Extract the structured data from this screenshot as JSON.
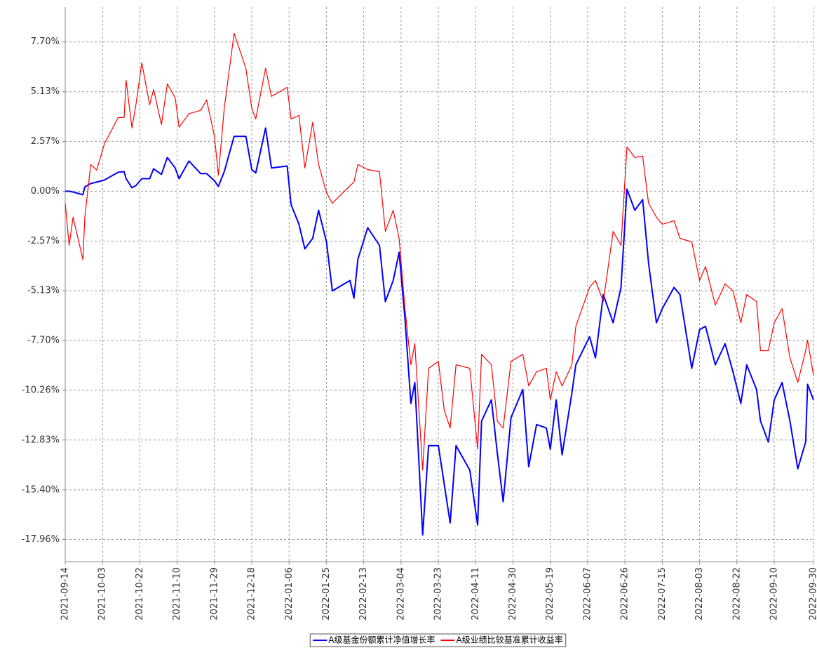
{
  "chart_data": {
    "type": "line",
    "x": [
      "2021-09-14",
      "2021-09-16",
      "2021-09-18",
      "2021-09-23",
      "2021-09-24",
      "2021-09-27",
      "2021-09-30",
      "2021-10-04",
      "2021-10-11",
      "2021-10-14",
      "2021-10-15",
      "2021-10-18",
      "2021-10-20",
      "2021-10-23",
      "2021-10-27",
      "2021-10-29",
      "2021-11-02",
      "2021-11-05",
      "2021-11-09",
      "2021-11-11",
      "2021-11-16",
      "2021-11-22",
      "2021-11-25",
      "2021-11-29",
      "2021-12-01",
      "2021-12-04",
      "2021-12-09",
      "2021-12-15",
      "2021-12-18",
      "2021-12-20",
      "2021-12-25",
      "2021-12-28",
      "2022-01-05",
      "2022-01-07",
      "2022-01-11",
      "2022-01-14",
      "2022-01-18",
      "2022-01-21",
      "2022-01-25",
      "2022-01-28",
      "2022-02-06",
      "2022-02-08",
      "2022-02-10",
      "2022-02-15",
      "2022-02-21",
      "2022-02-24",
      "2022-02-28",
      "2022-03-03",
      "2022-03-06",
      "2022-03-09",
      "2022-03-11",
      "2022-03-15",
      "2022-03-18",
      "2022-03-23",
      "2022-03-26",
      "2022-03-29",
      "2022-04-01",
      "2022-04-08",
      "2022-04-12",
      "2022-04-14",
      "2022-04-19",
      "2022-04-22",
      "2022-04-25",
      "2022-04-29",
      "2022-05-05",
      "2022-05-08",
      "2022-05-12",
      "2022-05-17",
      "2022-05-19",
      "2022-05-22",
      "2022-05-25",
      "2022-05-30",
      "2022-06-01",
      "2022-06-08",
      "2022-06-11",
      "2022-06-15",
      "2022-06-20",
      "2022-06-24",
      "2022-06-27",
      "2022-07-01",
      "2022-07-05",
      "2022-07-08",
      "2022-07-12",
      "2022-07-15",
      "2022-07-21",
      "2022-07-24",
      "2022-07-30",
      "2022-08-03",
      "2022-08-06",
      "2022-08-11",
      "2022-08-16",
      "2022-08-20",
      "2022-08-24",
      "2022-08-27",
      "2022-09-01",
      "2022-09-03",
      "2022-09-07",
      "2022-09-10",
      "2022-09-14",
      "2022-09-18",
      "2022-09-22",
      "2022-09-26",
      "2022-09-27",
      "2022-09-30"
    ],
    "series": [
      {
        "name": "A级基金份额累计净值增长率",
        "color": "#0000ff",
        "values": [
          0.0,
          0.0,
          -0.04,
          -0.18,
          0.22,
          0.4,
          0.47,
          0.58,
          0.98,
          1.01,
          0.65,
          0.18,
          0.29,
          0.65,
          0.65,
          1.16,
          0.87,
          1.74,
          1.2,
          0.65,
          1.56,
          0.91,
          0.91,
          0.54,
          0.25,
          1.01,
          2.83,
          2.83,
          1.12,
          0.94,
          3.26,
          1.2,
          1.3,
          -0.69,
          -1.7,
          -2.97,
          -2.43,
          -0.98,
          -2.61,
          -5.14,
          -4.6,
          -5.51,
          -3.51,
          -1.88,
          -2.79,
          -5.69,
          -4.6,
          -3.15,
          -6.6,
          -10.94,
          -9.86,
          -17.72,
          -13.12,
          -13.12,
          -15.11,
          -17.1,
          -13.12,
          -14.38,
          -17.21,
          -11.85,
          -10.76,
          -13.48,
          -16.01,
          -11.67,
          -10.22,
          -14.2,
          -12.03,
          -12.21,
          -13.3,
          -10.76,
          -13.59,
          -10.4,
          -8.95,
          -7.5,
          -8.59,
          -5.33,
          -6.78,
          -4.96,
          0.11,
          -0.98,
          -0.43,
          -3.7,
          -6.78,
          -6.05,
          -4.96,
          -5.33,
          -9.13,
          -7.14,
          -6.96,
          -8.95,
          -7.86,
          -9.31,
          -10.94,
          -8.95,
          -10.22,
          -11.85,
          -12.93,
          -10.76,
          -9.86,
          -11.85,
          -14.31,
          -12.93,
          -9.96,
          -10.76
        ]
      },
      {
        "name": "A级业绩比较基准累计收益率",
        "color": "#ff0000",
        "values": [
          -0.62,
          -2.79,
          -1.34,
          -3.52,
          -1.34,
          1.38,
          1.09,
          2.46,
          3.8,
          3.8,
          5.72,
          3.26,
          4.46,
          6.63,
          4.46,
          5.25,
          3.44,
          5.54,
          4.82,
          3.3,
          4.0,
          4.17,
          4.71,
          2.83,
          0.83,
          4.28,
          8.15,
          6.34,
          4.28,
          3.73,
          6.34,
          4.89,
          5.36,
          3.73,
          3.91,
          1.2,
          3.55,
          1.38,
          -0.07,
          -0.62,
          0.29,
          0.47,
          1.38,
          1.12,
          1.01,
          -2.07,
          -0.98,
          -2.43,
          -6.05,
          -8.95,
          -7.86,
          -14.38,
          -9.13,
          -8.77,
          -11.3,
          -12.21,
          -8.95,
          -9.13,
          -13.3,
          -8.41,
          -8.95,
          -11.85,
          -12.21,
          -8.77,
          -8.41,
          -10.04,
          -9.31,
          -9.13,
          -10.76,
          -9.31,
          -10.04,
          -8.95,
          -6.96,
          -4.96,
          -4.6,
          -5.69,
          -2.07,
          -2.79,
          2.28,
          1.74,
          1.81,
          -0.62,
          -1.34,
          -1.7,
          -1.52,
          -2.43,
          -2.61,
          -4.6,
          -3.88,
          -5.87,
          -4.78,
          -5.14,
          -6.78,
          -5.33,
          -5.69,
          -8.22,
          -8.22,
          -6.78,
          -6.05,
          -8.59,
          -9.86,
          -8.22,
          -7.68,
          -9.49
        ]
      }
    ],
    "xlim": [
      "2021-09-14",
      "2022-09-30"
    ],
    "xticks": [
      "2021-09-14",
      "2021-10-03",
      "2021-10-22",
      "2021-11-10",
      "2021-11-29",
      "2021-12-18",
      "2022-01-06",
      "2022-01-25",
      "2022-02-13",
      "2022-03-04",
      "2022-03-23",
      "2022-04-11",
      "2022-04-30",
      "2022-05-19",
      "2022-06-07",
      "2022-06-26",
      "2022-07-15",
      "2022-08-03",
      "2022-08-22",
      "2022-09-10",
      "2022-09-30"
    ],
    "ylim": [
      -19.1,
      9.5
    ],
    "yticks": [
      {
        "value": 7.7,
        "label": "7.70%"
      },
      {
        "value": 5.13,
        "label": "5.13%"
      },
      {
        "value": 2.57,
        "label": "2.57%"
      },
      {
        "value": 0,
        "label": "0.00%"
      },
      {
        "value": -2.57,
        "label": "-2.57%"
      },
      {
        "value": -5.13,
        "label": "-5.13%"
      },
      {
        "value": -7.7,
        "label": "-7.70%"
      },
      {
        "value": -10.26,
        "label": "-10.26%"
      },
      {
        "value": -12.83,
        "label": "-12.83%"
      },
      {
        "value": -15.4,
        "label": "-15.40%"
      },
      {
        "value": -17.96,
        "label": "-17.96%"
      }
    ],
    "grid": true
  }
}
